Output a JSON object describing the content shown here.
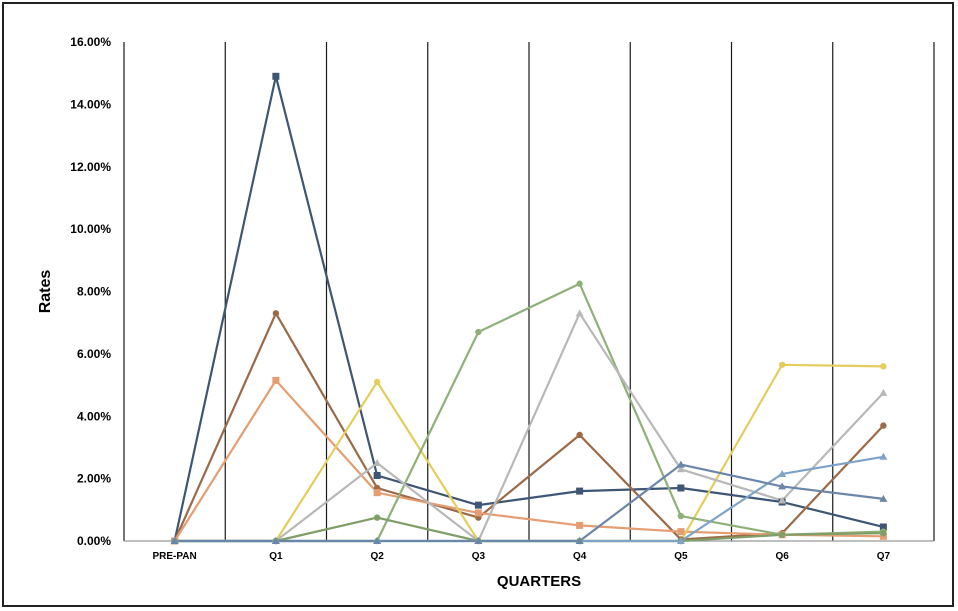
{
  "chart_data": {
    "type": "line",
    "xlabel": "QUARTERS",
    "ylabel": "Rates",
    "categories": [
      "PRE-PAN",
      "Q1",
      "Q2",
      "Q3",
      "Q4",
      "Q5",
      "Q6",
      "Q7"
    ],
    "ylim": [
      0,
      16
    ],
    "y_ticks": [
      "0.00%",
      "2.00%",
      "4.00%",
      "6.00%",
      "8.00%",
      "10.00%",
      "12.00%",
      "14.00%",
      "16.00%"
    ],
    "grid": "vertical lines between categories",
    "series": [
      {
        "color": "#3e5674",
        "marker": "square",
        "values": [
          0,
          14.9,
          2.1,
          1.15,
          1.6,
          1.7,
          1.25,
          0.45
        ]
      },
      {
        "color": "#9b6a48",
        "marker": "circle",
        "values": [
          0,
          7.3,
          1.7,
          0.75,
          3.4,
          0.05,
          0.25,
          3.7
        ]
      },
      {
        "color": "#e59d72",
        "marker": "square",
        "values": [
          0,
          5.15,
          1.55,
          0.9,
          0.5,
          0.3,
          0.2,
          0.15
        ]
      },
      {
        "color": "#e5cd5c",
        "marker": "circle",
        "values": [
          0,
          0,
          5.1,
          0,
          0,
          0,
          5.65,
          5.6
        ]
      },
      {
        "color": "#8fb078",
        "marker": "circle",
        "values": [
          0,
          0,
          0,
          6.7,
          8.25,
          0.8,
          0.2,
          0.3
        ]
      },
      {
        "color": "#b8b8b8",
        "marker": "triangle",
        "values": [
          0,
          0,
          2.5,
          0,
          7.3,
          2.3,
          1.3,
          4.75
        ]
      },
      {
        "color": "#7f9e68",
        "marker": "circle",
        "values": [
          0,
          0,
          0.75,
          0,
          0,
          0,
          0.2,
          0.25
        ]
      },
      {
        "color": "#7fa3c8",
        "marker": "triangle",
        "values": [
          0,
          0,
          0,
          0,
          0,
          0,
          2.15,
          2.7
        ]
      },
      {
        "color": "#6a86a8",
        "marker": "triangle",
        "values": [
          0,
          0,
          0,
          0,
          0,
          2.45,
          1.75,
          1.35
        ]
      }
    ]
  }
}
